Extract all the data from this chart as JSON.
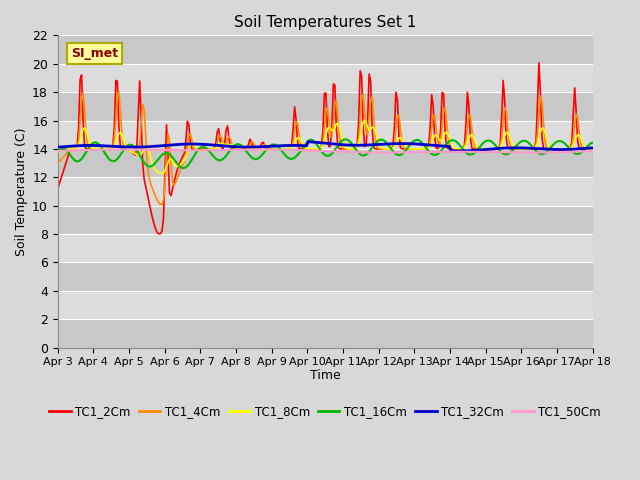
{
  "title": "Soil Temperatures Set 1",
  "xlabel": "Time",
  "ylabel": "Soil Temperature (C)",
  "ylim": [
    0,
    22
  ],
  "yticks": [
    0,
    2,
    4,
    6,
    8,
    10,
    12,
    14,
    16,
    18,
    20,
    22
  ],
  "xtick_labels": [
    "Apr 3",
    "Apr 4",
    "Apr 5",
    "Apr 6",
    "Apr 7",
    "Apr 8",
    "Apr 9",
    "Apr 10",
    "Apr 11",
    "Apr 12",
    "Apr 13",
    "Apr 14",
    "Apr 15",
    "Apr 16",
    "Apr 17",
    "Apr 18"
  ],
  "annotation_text": "SI_met",
  "series_colors": [
    "#FF0000",
    "#FF8C00",
    "#FFFF00",
    "#00BB00",
    "#0000CC",
    "#FF99CC"
  ],
  "series_labels": [
    "TC1_2Cm",
    "TC1_4Cm",
    "TC1_8Cm",
    "TC1_16Cm",
    "TC1_32Cm",
    "TC1_50Cm"
  ],
  "series_linewidths": [
    1.2,
    1.2,
    1.2,
    1.5,
    2.0,
    1.5
  ],
  "bg_color": "#D8D8D8",
  "plot_bg_light": "#DCDCDC",
  "plot_bg_dark": "#C8C8C8",
  "grid_color": "#FFFFFF",
  "figsize": [
    6.4,
    4.8
  ],
  "dpi": 100
}
